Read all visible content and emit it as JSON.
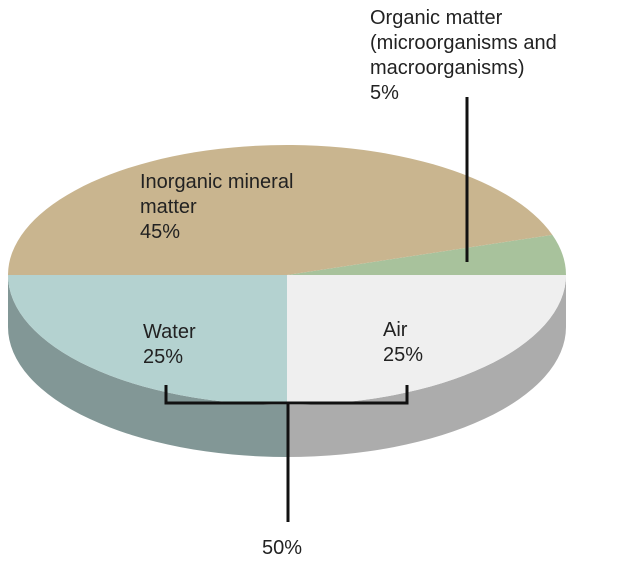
{
  "chart_data": {
    "type": "pie",
    "categories": [
      "Water",
      "Air",
      "Organic matter (microorganisms and macroorganisms)",
      "Inorganic mineral matter"
    ],
    "values": [
      25,
      25,
      5,
      45
    ],
    "value_labels": [
      "25%",
      "25%",
      "5%",
      "45%"
    ],
    "colors": [
      "#b4d2d0",
      "#efefef",
      "#a8c29c",
      "#c9b58f"
    ],
    "annotation": "50%"
  }
}
